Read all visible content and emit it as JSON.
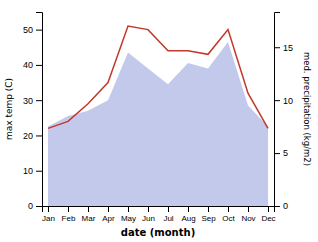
{
  "chart_data": {
    "type": "line",
    "categories": [
      "Jan",
      "Feb",
      "Mar",
      "Apr",
      "May",
      "Jun",
      "Jul",
      "Aug",
      "Sep",
      "Oct",
      "Nov",
      "Dec"
    ],
    "series": [
      {
        "type": "area",
        "color": "#b8c0e8",
        "axis": "y2",
        "values": [
          7.5,
          8.5,
          9.0,
          10.0,
          14.5,
          13.0,
          11.5,
          13.5,
          13.0,
          15.5,
          9.5,
          7.5
        ]
      },
      {
        "type": "line",
        "color": "#c0392b",
        "values": [
          22,
          24,
          29,
          35,
          51,
          50,
          44,
          44,
          43,
          50,
          32,
          22
        ]
      }
    ],
    "xlabel": "date (month)",
    "ylabel": "max temp (C)",
    "y2label": "med. precipitation (kg/m2)",
    "ylim": [
      0,
      55
    ],
    "yticks": [
      0,
      10,
      20,
      30,
      40,
      50
    ],
    "y2lim": [
      0,
      18.33
    ],
    "y2ticks": [
      0,
      5,
      10,
      15
    ]
  }
}
